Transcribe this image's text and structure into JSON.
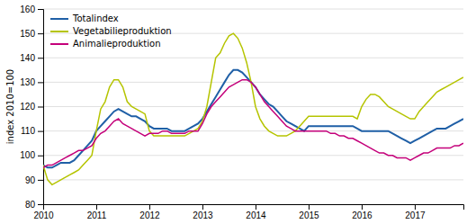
{
  "chart_data": {
    "type": "line",
    "y_label": "index 2010=100",
    "categories": [
      "2010",
      null,
      null,
      null,
      null,
      null,
      null,
      null,
      null,
      null,
      null,
      null,
      "2011",
      null,
      null,
      null,
      null,
      null,
      null,
      null,
      null,
      null,
      null,
      null,
      "2012",
      null,
      null,
      null,
      null,
      null,
      null,
      null,
      null,
      null,
      null,
      null,
      "2013",
      null,
      null,
      null,
      null,
      null,
      null,
      null,
      null,
      null,
      null,
      null,
      "2014",
      null,
      null,
      null,
      null,
      null,
      null,
      null,
      null,
      null,
      null,
      null,
      "2015",
      null,
      null,
      null,
      null,
      null,
      null,
      null,
      null,
      null,
      null,
      null,
      "2016",
      null,
      null,
      null,
      null,
      null,
      null,
      null,
      null,
      null,
      null,
      null,
      "2017",
      null,
      null,
      null,
      null,
      null,
      null,
      null,
      null,
      null,
      null,
      null
    ],
    "ylim": [
      80,
      160
    ],
    "yticks": [
      80,
      90,
      100,
      110,
      120,
      130,
      140,
      150,
      160
    ],
    "grid": true,
    "legend": "upper left",
    "series": [
      {
        "name": "Totalindex",
        "color": "#1f5fa6",
        "values": [
          96,
          95,
          95,
          96,
          97,
          97,
          97,
          98,
          100,
          102,
          104,
          106,
          110,
          112,
          114,
          116,
          118,
          119,
          118,
          117,
          116,
          116,
          115,
          114,
          112,
          111,
          111,
          111,
          111,
          110,
          110,
          110,
          110,
          111,
          112,
          113,
          115,
          118,
          121,
          124,
          127,
          130,
          133,
          135,
          135,
          134,
          132,
          130,
          128,
          125,
          123,
          121,
          120,
          118,
          116,
          114,
          113,
          112,
          111,
          110,
          112,
          112,
          112,
          112,
          112,
          112,
          112,
          112,
          112,
          112,
          112,
          111,
          110,
          110,
          110,
          110,
          110,
          110,
          110,
          109,
          108,
          107,
          106,
          105,
          106,
          107,
          108,
          109,
          110,
          111,
          111,
          111,
          112,
          113,
          114,
          115
        ]
      },
      {
        "name": "Vegetabilieproduktion",
        "color": "#b5c400",
        "values": [
          96,
          90,
          88,
          89,
          90,
          91,
          92,
          93,
          94,
          96,
          98,
          100,
          110,
          119,
          122,
          128,
          131,
          131,
          128,
          122,
          120,
          119,
          118,
          117,
          110,
          108,
          108,
          108,
          108,
          108,
          108,
          108,
          108,
          109,
          110,
          111,
          114,
          120,
          130,
          140,
          142,
          146,
          149,
          150,
          148,
          144,
          138,
          130,
          120,
          115,
          112,
          110,
          109,
          108,
          108,
          108,
          109,
          110,
          112,
          114,
          116,
          116,
          116,
          116,
          116,
          116,
          116,
          116,
          116,
          116,
          116,
          115,
          120,
          123,
          125,
          125,
          124,
          122,
          120,
          119,
          118,
          117,
          116,
          115,
          115,
          118,
          120,
          122,
          124,
          126,
          127,
          128,
          129,
          130,
          131,
          132
        ]
      },
      {
        "name": "Animalieproduktion",
        "color": "#c4007a",
        "values": [
          95,
          96,
          96,
          97,
          98,
          99,
          100,
          101,
          102,
          102,
          103,
          104,
          107,
          109,
          110,
          112,
          114,
          115,
          113,
          112,
          111,
          110,
          109,
          108,
          109,
          109,
          109,
          110,
          110,
          109,
          109,
          109,
          109,
          110,
          110,
          110,
          113,
          117,
          120,
          122,
          124,
          126,
          128,
          129,
          130,
          131,
          131,
          130,
          128,
          125,
          122,
          120,
          118,
          116,
          114,
          112,
          111,
          110,
          110,
          110,
          110,
          110,
          110,
          110,
          110,
          109,
          109,
          108,
          108,
          107,
          107,
          106,
          105,
          104,
          103,
          102,
          101,
          101,
          100,
          100,
          99,
          99,
          99,
          98,
          99,
          100,
          101,
          101,
          102,
          103,
          103,
          103,
          103,
          104,
          104,
          105
        ]
      }
    ]
  }
}
